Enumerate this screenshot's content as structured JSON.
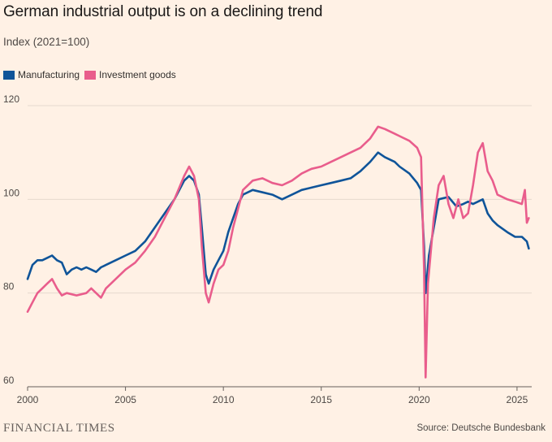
{
  "chart_data": {
    "type": "line",
    "title": "German industrial output is on a declining trend",
    "ylabel": "Index (2021=100)",
    "xlabel": "",
    "xlim": [
      2000,
      2025.75
    ],
    "ylim": [
      60,
      120
    ],
    "x_ticks": [
      2000,
      2005,
      2010,
      2015,
      2020,
      2025
    ],
    "y_ticks": [
      60,
      80,
      100,
      120
    ],
    "grid": true,
    "legend_position": "top-left",
    "series": [
      {
        "name": "Manufacturing",
        "color": "#0F5499",
        "points": [
          [
            2000.0,
            83
          ],
          [
            2000.25,
            86
          ],
          [
            2000.5,
            87
          ],
          [
            2000.75,
            87
          ],
          [
            2001.0,
            87.5
          ],
          [
            2001.25,
            88
          ],
          [
            2001.5,
            87
          ],
          [
            2001.75,
            86.5
          ],
          [
            2002.0,
            84
          ],
          [
            2002.25,
            85
          ],
          [
            2002.5,
            85.5
          ],
          [
            2002.75,
            85
          ],
          [
            2003.0,
            85.5
          ],
          [
            2003.25,
            85
          ],
          [
            2003.5,
            84.5
          ],
          [
            2003.75,
            85.5
          ],
          [
            2004.0,
            86
          ],
          [
            2004.5,
            87
          ],
          [
            2005.0,
            88
          ],
          [
            2005.5,
            89
          ],
          [
            2006.0,
            91
          ],
          [
            2006.5,
            94
          ],
          [
            2007.0,
            97
          ],
          [
            2007.5,
            100
          ],
          [
            2008.0,
            104
          ],
          [
            2008.25,
            105
          ],
          [
            2008.5,
            104
          ],
          [
            2008.75,
            101
          ],
          [
            2008.9,
            94
          ],
          [
            2009.1,
            84
          ],
          [
            2009.25,
            82
          ],
          [
            2009.5,
            85
          ],
          [
            2009.75,
            87
          ],
          [
            2010.0,
            89
          ],
          [
            2010.25,
            93
          ],
          [
            2010.5,
            96
          ],
          [
            2010.75,
            99
          ],
          [
            2011.0,
            101
          ],
          [
            2011.5,
            102
          ],
          [
            2012.0,
            101.5
          ],
          [
            2012.5,
            101
          ],
          [
            2013.0,
            100
          ],
          [
            2013.5,
            101
          ],
          [
            2014.0,
            102
          ],
          [
            2014.5,
            102.5
          ],
          [
            2015.0,
            103
          ],
          [
            2015.5,
            103.5
          ],
          [
            2016.0,
            104
          ],
          [
            2016.5,
            104.5
          ],
          [
            2017.0,
            106
          ],
          [
            2017.5,
            108
          ],
          [
            2017.9,
            110
          ],
          [
            2018.25,
            109
          ],
          [
            2018.75,
            108
          ],
          [
            2019.0,
            107
          ],
          [
            2019.5,
            105.5
          ],
          [
            2019.9,
            103.5
          ],
          [
            2020.1,
            102
          ],
          [
            2020.25,
            90
          ],
          [
            2020.33,
            80
          ],
          [
            2020.5,
            88
          ],
          [
            2020.75,
            94
          ],
          [
            2021.0,
            100
          ],
          [
            2021.5,
            100.5
          ],
          [
            2021.9,
            98.5
          ],
          [
            2022.25,
            99
          ],
          [
            2022.5,
            99.5
          ],
          [
            2022.75,
            99
          ],
          [
            2023.0,
            99.5
          ],
          [
            2023.25,
            100
          ],
          [
            2023.5,
            97
          ],
          [
            2023.75,
            95.5
          ],
          [
            2024.0,
            94.5
          ],
          [
            2024.5,
            93
          ],
          [
            2024.9,
            92
          ],
          [
            2025.25,
            92
          ],
          [
            2025.5,
            91
          ],
          [
            2025.6,
            89.5
          ]
        ]
      },
      {
        "name": "Investment goods",
        "color": "#E95D8C",
        "points": [
          [
            2000.0,
            76
          ],
          [
            2000.25,
            78
          ],
          [
            2000.5,
            80
          ],
          [
            2000.75,
            81
          ],
          [
            2001.0,
            82
          ],
          [
            2001.25,
            83
          ],
          [
            2001.5,
            81
          ],
          [
            2001.75,
            79.5
          ],
          [
            2002.0,
            80
          ],
          [
            2002.5,
            79.5
          ],
          [
            2003.0,
            80
          ],
          [
            2003.25,
            81
          ],
          [
            2003.5,
            80
          ],
          [
            2003.75,
            79
          ],
          [
            2004.0,
            81
          ],
          [
            2004.5,
            83
          ],
          [
            2005.0,
            85
          ],
          [
            2005.5,
            86.5
          ],
          [
            2006.0,
            89
          ],
          [
            2006.5,
            92
          ],
          [
            2007.0,
            96
          ],
          [
            2007.5,
            100
          ],
          [
            2008.0,
            105
          ],
          [
            2008.25,
            107
          ],
          [
            2008.5,
            105
          ],
          [
            2008.75,
            100
          ],
          [
            2008.9,
            90
          ],
          [
            2009.1,
            80
          ],
          [
            2009.25,
            78
          ],
          [
            2009.5,
            82
          ],
          [
            2009.75,
            85
          ],
          [
            2010.0,
            86
          ],
          [
            2010.25,
            89
          ],
          [
            2010.5,
            94
          ],
          [
            2010.75,
            98
          ],
          [
            2011.0,
            102
          ],
          [
            2011.5,
            104
          ],
          [
            2012.0,
            104.5
          ],
          [
            2012.5,
            103.5
          ],
          [
            2013.0,
            103
          ],
          [
            2013.5,
            104
          ],
          [
            2014.0,
            105.5
          ],
          [
            2014.5,
            106.5
          ],
          [
            2015.0,
            107
          ],
          [
            2015.5,
            108
          ],
          [
            2016.0,
            109
          ],
          [
            2016.5,
            110
          ],
          [
            2017.0,
            111
          ],
          [
            2017.5,
            113
          ],
          [
            2017.9,
            115.5
          ],
          [
            2018.25,
            115
          ],
          [
            2018.75,
            114
          ],
          [
            2019.0,
            113.5
          ],
          [
            2019.5,
            112.5
          ],
          [
            2019.9,
            111
          ],
          [
            2020.1,
            109
          ],
          [
            2020.25,
            85
          ],
          [
            2020.33,
            62
          ],
          [
            2020.45,
            82
          ],
          [
            2020.75,
            96
          ],
          [
            2021.0,
            103
          ],
          [
            2021.25,
            105
          ],
          [
            2021.5,
            99
          ],
          [
            2021.75,
            96
          ],
          [
            2022.0,
            100
          ],
          [
            2022.25,
            96
          ],
          [
            2022.5,
            97
          ],
          [
            2022.75,
            103
          ],
          [
            2023.0,
            110
          ],
          [
            2023.25,
            112
          ],
          [
            2023.5,
            106
          ],
          [
            2023.75,
            104
          ],
          [
            2024.0,
            101
          ],
          [
            2024.5,
            100
          ],
          [
            2024.9,
            99.5
          ],
          [
            2025.25,
            99
          ],
          [
            2025.4,
            102
          ],
          [
            2025.5,
            95
          ],
          [
            2025.6,
            96
          ]
        ]
      }
    ]
  },
  "footer": {
    "brand": "FINANCIAL TIMES",
    "source": "Source: Deutsche Bundesbank"
  }
}
